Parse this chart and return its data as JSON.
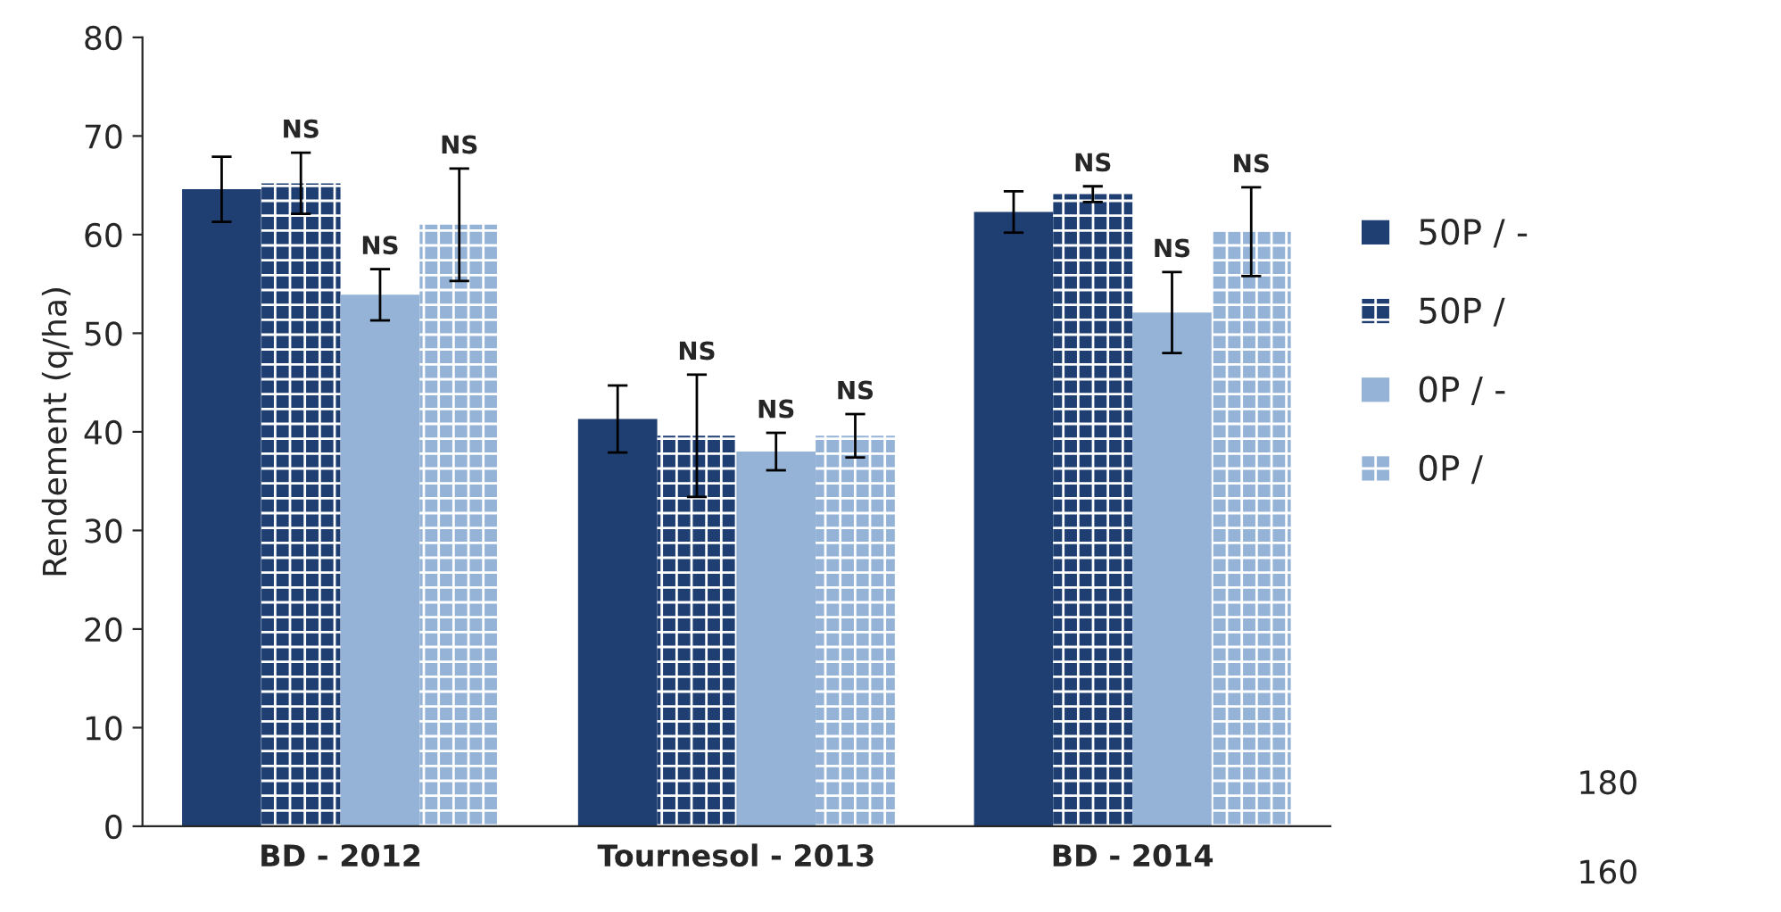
{
  "chart_data": [
    {
      "type": "bar",
      "ylabel": "Rendement (q/ha)",
      "categories": [
        "BD - 2012",
        "Tournesol - 2013",
        "BD - 2014"
      ],
      "series": [
        {
          "name": "50P / -",
          "color": "#1f3f73",
          "values": [
            64.6,
            41.3,
            62.3
          ],
          "errors": [
            3.3,
            3.4,
            2.1
          ]
        },
        {
          "name": "50P /",
          "color": "#1f3f73",
          "values": [
            65.2,
            39.6,
            64.1
          ],
          "errors": [
            3.1,
            6.2,
            0.8
          ],
          "value_labels": [
            "NS",
            "NS",
            "NS"
          ]
        },
        {
          "name": "0P / -",
          "color": "#95b3d7",
          "values": [
            53.9,
            38.0,
            52.1
          ],
          "errors": [
            2.6,
            1.9,
            4.1
          ],
          "value_labels": [
            "NS",
            "NS",
            "NS"
          ]
        },
        {
          "name": "0P /",
          "color": "#95b3d7",
          "values": [
            61.0,
            39.6,
            60.3
          ],
          "errors": [
            5.7,
            2.2,
            4.5
          ],
          "value_labels": [
            "NS",
            "NS",
            "NS"
          ]
        }
      ],
      "ylim": [
        0,
        80
      ],
      "yticks": [
        0,
        10,
        20,
        30,
        40,
        50,
        60,
        70,
        80
      ],
      "grid": false,
      "legend": "right"
    },
    {
      "type": "other",
      "annotations": [
        "180",
        "160"
      ]
    }
  ]
}
